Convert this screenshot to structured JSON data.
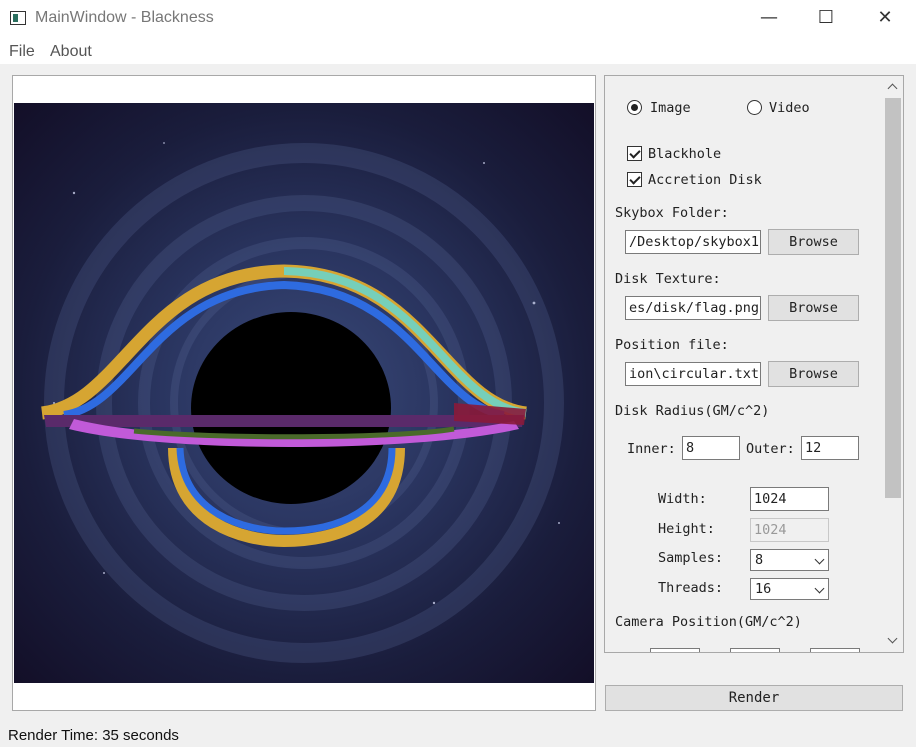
{
  "window": {
    "title": "MainWindow - Blackness",
    "minimize_glyph": "—",
    "maximize_glyph": "☐",
    "close_glyph": "✕"
  },
  "menu": {
    "file": "File",
    "about": "About"
  },
  "controls": {
    "mode_image": "Image",
    "mode_video": "Video",
    "blackhole_label": "Blackhole",
    "accretion_label": "Accretion Disk",
    "skybox_label": "Skybox Folder:",
    "skybox_value": "/Desktop/skybox1",
    "disk_texture_label": "Disk Texture:",
    "disk_texture_value": "es/disk/flag.png",
    "position_file_label": "Position file:",
    "position_file_value": "ion\\circular.txt",
    "browse": "Browse",
    "disk_radius_label": "Disk Radius(GM/c^2)",
    "inner_label": "Inner:",
    "inner_value": "8",
    "outer_label": "Outer:",
    "outer_value": "12",
    "width_label": "Width:",
    "width_value": "1024",
    "height_label": "Height:",
    "height_value": "1024",
    "samples_label": "Samples:",
    "samples_value": "8",
    "threads_label": "Threads:",
    "threads_value": "16",
    "camera_label": "Camera Position(GM/c^2)"
  },
  "render_button": "Render",
  "status": "Render Time: 35 seconds"
}
